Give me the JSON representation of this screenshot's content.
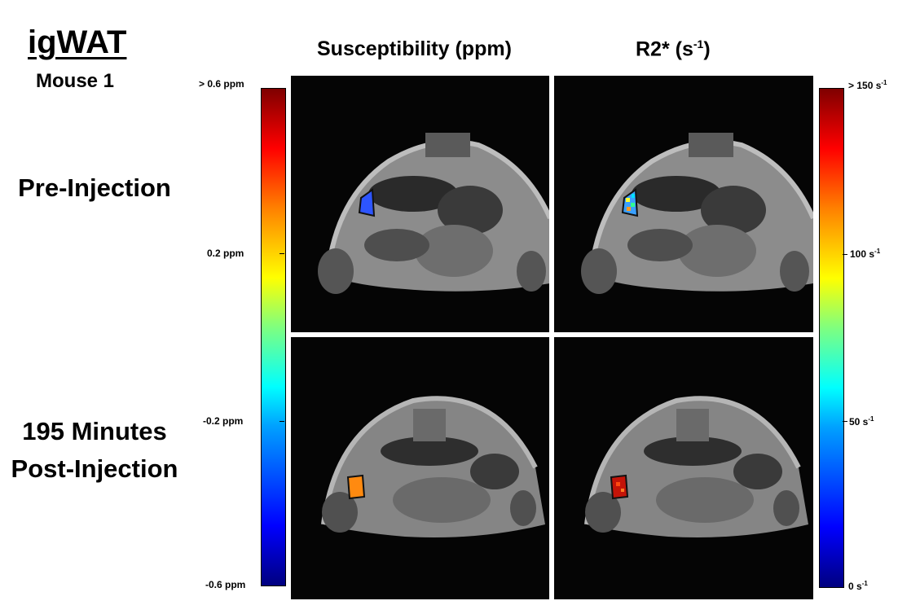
{
  "title": "igWAT",
  "subtitle": "Mouse 1",
  "row_labels": {
    "pre": "Pre-Injection",
    "post_line1": "195 Minutes",
    "post_line2": "Post-Injection"
  },
  "columns": {
    "susceptibility": "Susceptibility (ppm)",
    "r2_base": "R2* (s",
    "r2_exp": "-1",
    "r2_close": ")"
  },
  "left_colorbar": {
    "top": "> 0.6 ppm",
    "mid_high": "0.2 ppm",
    "mid_low": "-0.2 ppm",
    "bottom": "-0.6 ppm"
  },
  "right_colorbar": {
    "top_base": "> 150 s",
    "mid_high_base": "100 s",
    "mid_low_base": "50 s",
    "bottom_base": "0 s",
    "exp": "-1"
  },
  "colors": {
    "roi_pre_susceptibility": "#2d55ff",
    "roi_post_susceptibility": "#ff8a10",
    "roi_post_r2": "#c41408"
  }
}
